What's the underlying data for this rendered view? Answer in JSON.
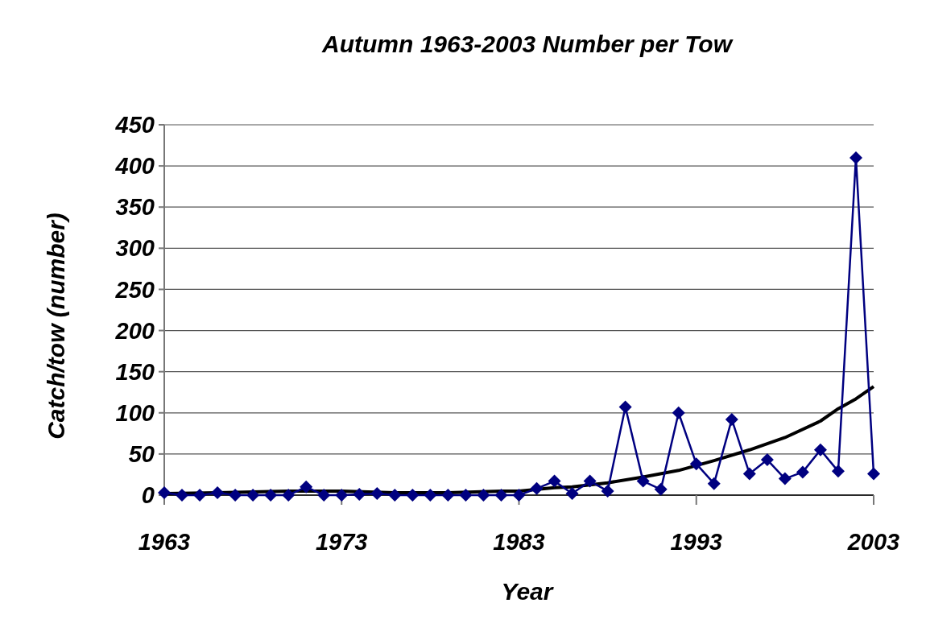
{
  "chart_data": {
    "type": "line",
    "title": "Autumn 1963-2003 Number per Tow",
    "xlabel": "Year",
    "ylabel": "Catch/tow (number)",
    "x": [
      1963,
      1964,
      1965,
      1966,
      1967,
      1968,
      1969,
      1970,
      1971,
      1972,
      1973,
      1974,
      1975,
      1976,
      1977,
      1978,
      1979,
      1980,
      1981,
      1982,
      1983,
      1984,
      1985,
      1986,
      1987,
      1988,
      1989,
      1990,
      1991,
      1992,
      1993,
      1994,
      1995,
      1996,
      1997,
      1998,
      1999,
      2000,
      2001,
      2002,
      2003
    ],
    "series": [
      {
        "color": "#000080",
        "marker": "diamond",
        "values": [
          3,
          0,
          0,
          3,
          0,
          0,
          0,
          0,
          10,
          0,
          0,
          1,
          2,
          0,
          0,
          0,
          0,
          0,
          0,
          0,
          0,
          8,
          17,
          2,
          17,
          5,
          107,
          17,
          7,
          100,
          38,
          14,
          92,
          26,
          43,
          20,
          28,
          55,
          29,
          410,
          26
        ]
      },
      {
        "color": "#000000",
        "marker": "none",
        "x": [
          1963,
          1966,
          1970,
          1973,
          1976,
          1979,
          1982,
          1983,
          1985,
          1986,
          1988,
          1990,
          1992,
          1994,
          1996,
          1998,
          2000,
          2001,
          2002,
          2003
        ],
        "values": [
          2,
          3,
          5,
          5,
          3,
          3,
          5,
          5,
          9,
          10,
          15,
          22,
          30,
          42,
          55,
          70,
          90,
          105,
          117,
          132
        ]
      }
    ],
    "xlim": [
      1963,
      2003
    ],
    "xticks": [
      1963,
      1973,
      1983,
      1993,
      2003
    ],
    "ylim": [
      0,
      450
    ],
    "yticks": [
      0,
      50,
      100,
      150,
      200,
      250,
      300,
      350,
      400,
      450
    ],
    "grid": "y"
  }
}
